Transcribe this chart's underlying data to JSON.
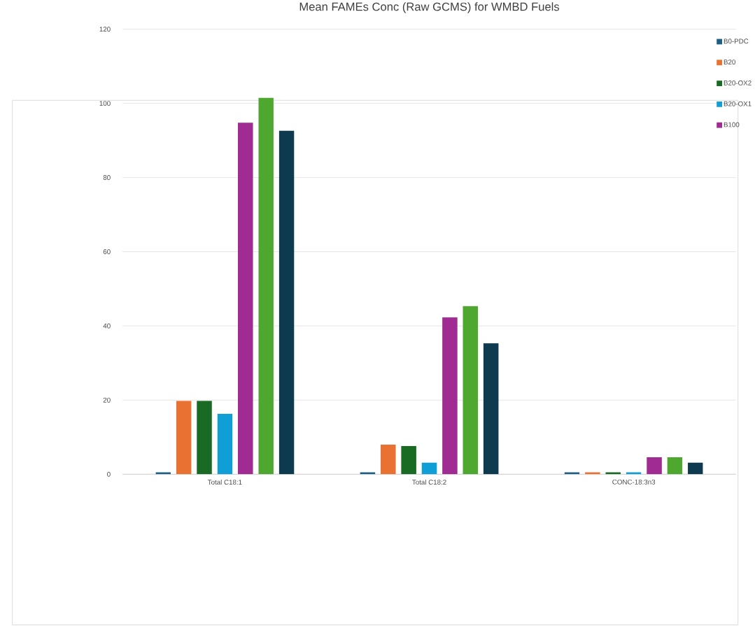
{
  "chart_data": {
    "type": "bar",
    "title": "Mean FAMEs Conc (Raw GCMS) for WMBD Fuels",
    "categories": [
      "Total C18:1",
      "Total C18:2",
      "CONC-18:3n3"
    ],
    "series": [
      {
        "name": "B0-PDC",
        "color": "#1f5f85",
        "values": [
          0.5,
          0.5,
          0.5
        ]
      },
      {
        "name": "B20",
        "color": "#e97132",
        "values": [
          19.8,
          8.0,
          0.5
        ]
      },
      {
        "name": "B20-OX2",
        "color": "#196b24",
        "values": [
          19.8,
          7.6,
          0.5
        ]
      },
      {
        "name": "B20-OX1",
        "color": "#0f9ed5",
        "values": [
          16.3,
          3.1,
          0.5
        ]
      },
      {
        "name": "B100",
        "color": "#a02b93",
        "values": [
          94.8,
          42.3,
          4.6
        ]
      },
      {
        "color": "#4ea72e",
        "values": [
          101.5,
          45.3,
          4.6
        ]
      },
      {
        "color": "#0e3a4f",
        "values": [
          92.6,
          35.3,
          3.1
        ]
      }
    ],
    "ylim": [
      0,
      120
    ],
    "yticks": [
      0,
      20,
      40,
      60,
      80,
      100,
      120
    ],
    "grid": "y",
    "legend": "top right"
  }
}
